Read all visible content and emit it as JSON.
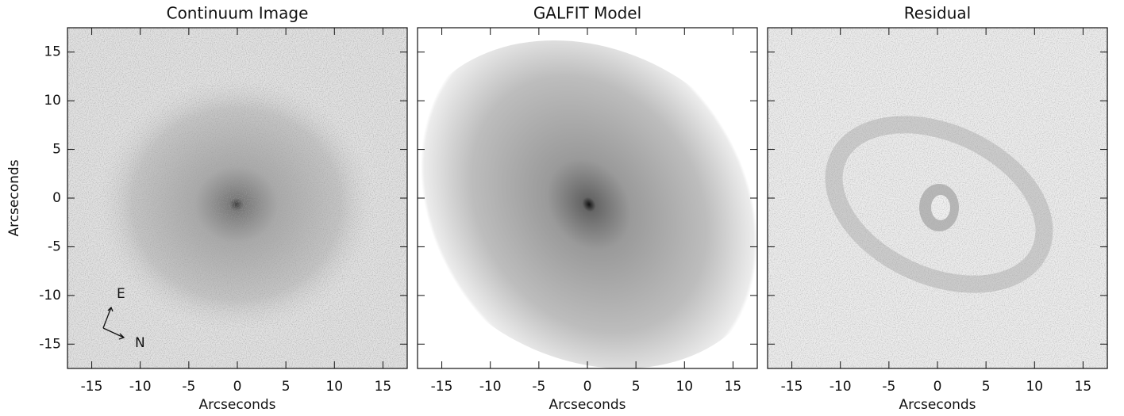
{
  "chart_data": [
    {
      "type": "image",
      "title": "Continuum Image",
      "xlabel": "Arcseconds",
      "ylabel": "Arcseconds",
      "xlim": [
        -17.5,
        17.5
      ],
      "xticks": [
        -15,
        -10,
        -5,
        0,
        5,
        10,
        15
      ],
      "ylim": [
        -17.5,
        17.5
      ],
      "yticks": [
        -15,
        -10,
        -5,
        0,
        5,
        10,
        15
      ],
      "annotations": [
        "E",
        "N"
      ]
    },
    {
      "type": "image",
      "title": "GALFIT Model",
      "xlabel": "Arcseconds",
      "xlim": [
        -17.5,
        17.5
      ],
      "xticks": [
        -15,
        -10,
        -5,
        0,
        5,
        10,
        15
      ],
      "ylim": [
        -17.5,
        17.5
      ],
      "yticks": [
        -15,
        -10,
        -5,
        0,
        5,
        10,
        15
      ]
    },
    {
      "type": "image",
      "title": "Residual",
      "xlabel": "Arcseconds",
      "xlim": [
        -17.5,
        17.5
      ],
      "xticks": [
        -15,
        -10,
        -5,
        0,
        5,
        10,
        15
      ],
      "ylim": [
        -17.5,
        17.5
      ],
      "yticks": [
        -15,
        -10,
        -5,
        0,
        5,
        10,
        15
      ]
    }
  ]
}
